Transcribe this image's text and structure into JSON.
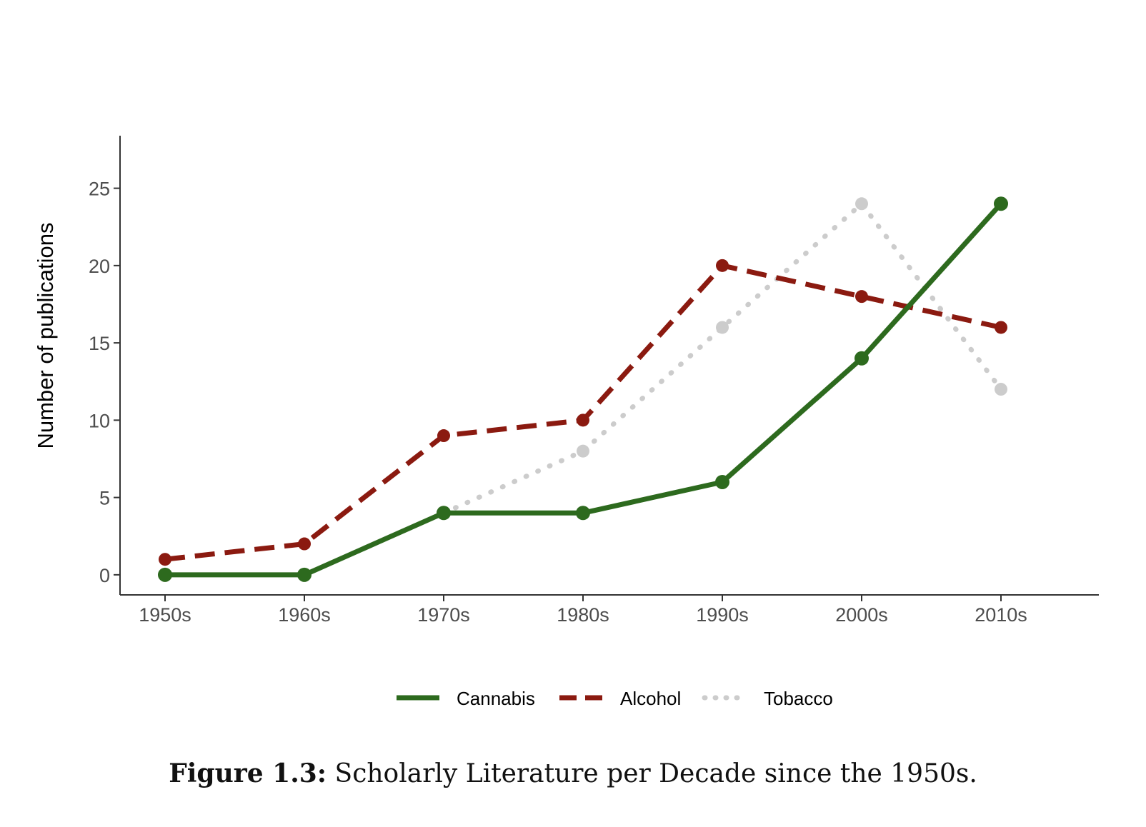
{
  "chart_data": {
    "type": "line",
    "categories": [
      "1950s",
      "1960s",
      "1970s",
      "1980s",
      "1990s",
      "2000s",
      "2010s"
    ],
    "series": [
      {
        "name": "Cannabis",
        "values": [
          0,
          0,
          4,
          4,
          6,
          14,
          24
        ],
        "color": "#2d6a1e",
        "dash": "solid"
      },
      {
        "name": "Alcohol",
        "values": [
          1,
          2,
          9,
          10,
          20,
          18,
          16
        ],
        "color": "#8b1a10",
        "dash": "longdash"
      },
      {
        "name": "Tobacco",
        "values": [
          null,
          null,
          4,
          8,
          16,
          24,
          12
        ],
        "color": "#cccccc",
        "dash": "dotted"
      }
    ],
    "title": "",
    "xlabel": "",
    "ylabel": "Number of publications",
    "yticks": [
      0,
      5,
      10,
      15,
      20,
      25
    ],
    "ylim": [
      -1.3,
      28.4
    ],
    "grid": false,
    "legend_position": "bottom"
  },
  "caption": {
    "label": "Figure 1.3:",
    "text": "Scholarly Literature per Decade since the 1950s."
  }
}
